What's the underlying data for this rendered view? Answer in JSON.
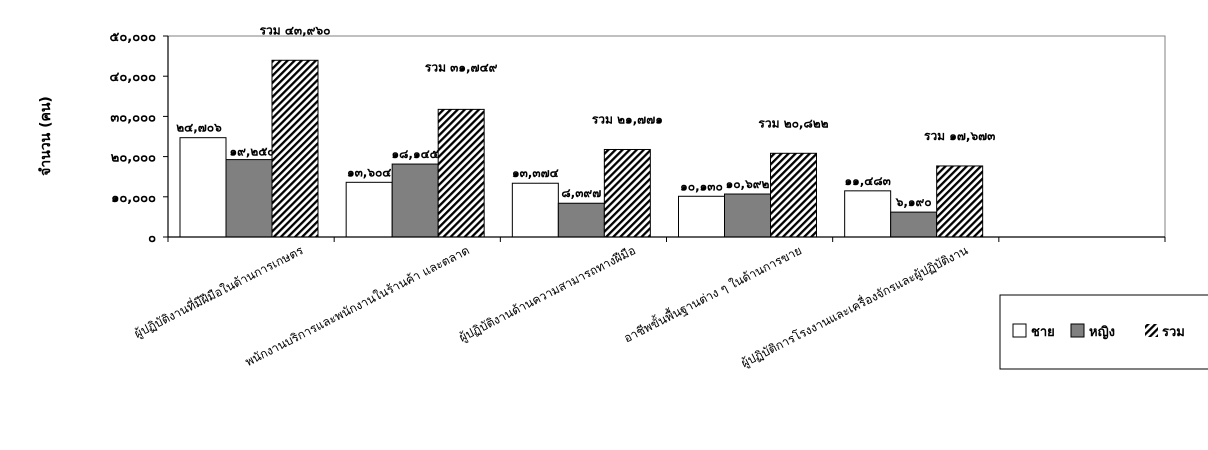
{
  "chart_data": {
    "type": "bar",
    "title": "",
    "xlabel": "",
    "ylabel": "จำนวน (คน)",
    "ylim": [
      0,
      50000
    ],
    "yticks": [
      0,
      10000,
      20000,
      30000,
      40000,
      50000
    ],
    "ytick_labels": [
      "๐",
      "๑๐,๐๐๐",
      "๒๐,๐๐๐",
      "๓๐,๐๐๐",
      "๔๐,๐๐๐",
      "๕๐,๐๐๐"
    ],
    "grid": false,
    "legend_position": "right",
    "categories": [
      "ผู้ปฏิบัติงานที่มีฝีมือในด้านการเกษตร",
      "พนักงานบริการและพนักงานในร้านค้า  และตลาด",
      "ผู้ปฏิบัติงานด้านความสามารถทางฝีมือ",
      "อาชีพขั้นพื้นฐานต่าง ๆ ในด้านการขาย",
      "ผู้ปฏิบัติการโรงงานและเครื่องจักรและผู้ปฏิบัติงาน",
      ""
    ],
    "series": [
      {
        "name": "ชาย",
        "values": [
          24706,
          13604,
          13374,
          10130,
          11483,
          null
        ],
        "labels": [
          "๒๔,๗๐๖",
          "๑๓,๖๐๔",
          "๑๓,๓๗๔",
          "๑๐,๑๓๐",
          "๑๑,๔๘๓",
          ""
        ],
        "fill": "#ffffff"
      },
      {
        "name": "หญิง",
        "values": [
          19254,
          18145,
          8397,
          10692,
          6190,
          null
        ],
        "labels": [
          "๑๙,๒๕๔",
          "๑๘,๑๔๕",
          "๘,๓๙๗",
          "๑๐,๖๙๒",
          "๖,๑๙๐",
          ""
        ],
        "fill": "#808080"
      },
      {
        "name": "รวม",
        "values": [
          43960,
          31749,
          21771,
          20822,
          17673,
          null
        ],
        "labels": [
          "รวม ๔๓,๙๖๐",
          "รวม ๓๑,๗๔๙",
          "รวม ๒๑,๗๗๑",
          "รวม ๒๐,๘๒๒",
          "รวม ๑๗,๖๗๓",
          ""
        ],
        "fill": "hatch"
      }
    ]
  }
}
